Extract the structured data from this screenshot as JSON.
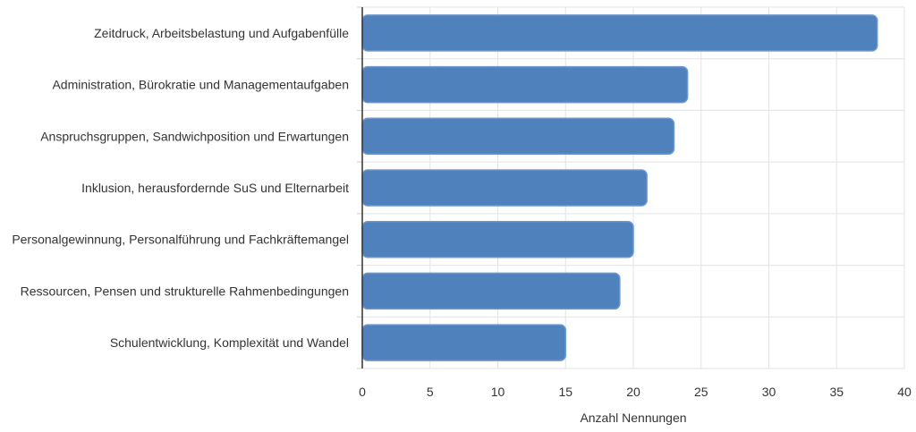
{
  "chart_data": {
    "type": "bar",
    "orientation": "horizontal",
    "categories": [
      "Zeitdruck, Arbeitsbelastung und Aufgabenfülle",
      "Administration, Bürokratie und Managementaufgaben",
      "Anspruchsgruppen, Sandwichposition und Erwartungen",
      "Inklusion, herausfordernde SuS und Elternarbeit",
      "Personalgewinnung, Personalführung und Fachkräftemangel",
      "Ressourcen, Pensen und strukturelle Rahmenbedingungen",
      "Schulentwicklung, Komplexität und Wandel"
    ],
    "values": [
      38,
      24,
      23,
      21,
      20,
      19,
      15
    ],
    "xlabel": "Anzahl Nennungen",
    "ylabel": "",
    "xlim": [
      0,
      40
    ],
    "xticks": [
      "0",
      "5",
      "10",
      "15",
      "20",
      "25",
      "30",
      "35",
      "40"
    ],
    "grid": true,
    "bar_color": "#4f81bd",
    "bar_border_color": "#6f97cc"
  }
}
